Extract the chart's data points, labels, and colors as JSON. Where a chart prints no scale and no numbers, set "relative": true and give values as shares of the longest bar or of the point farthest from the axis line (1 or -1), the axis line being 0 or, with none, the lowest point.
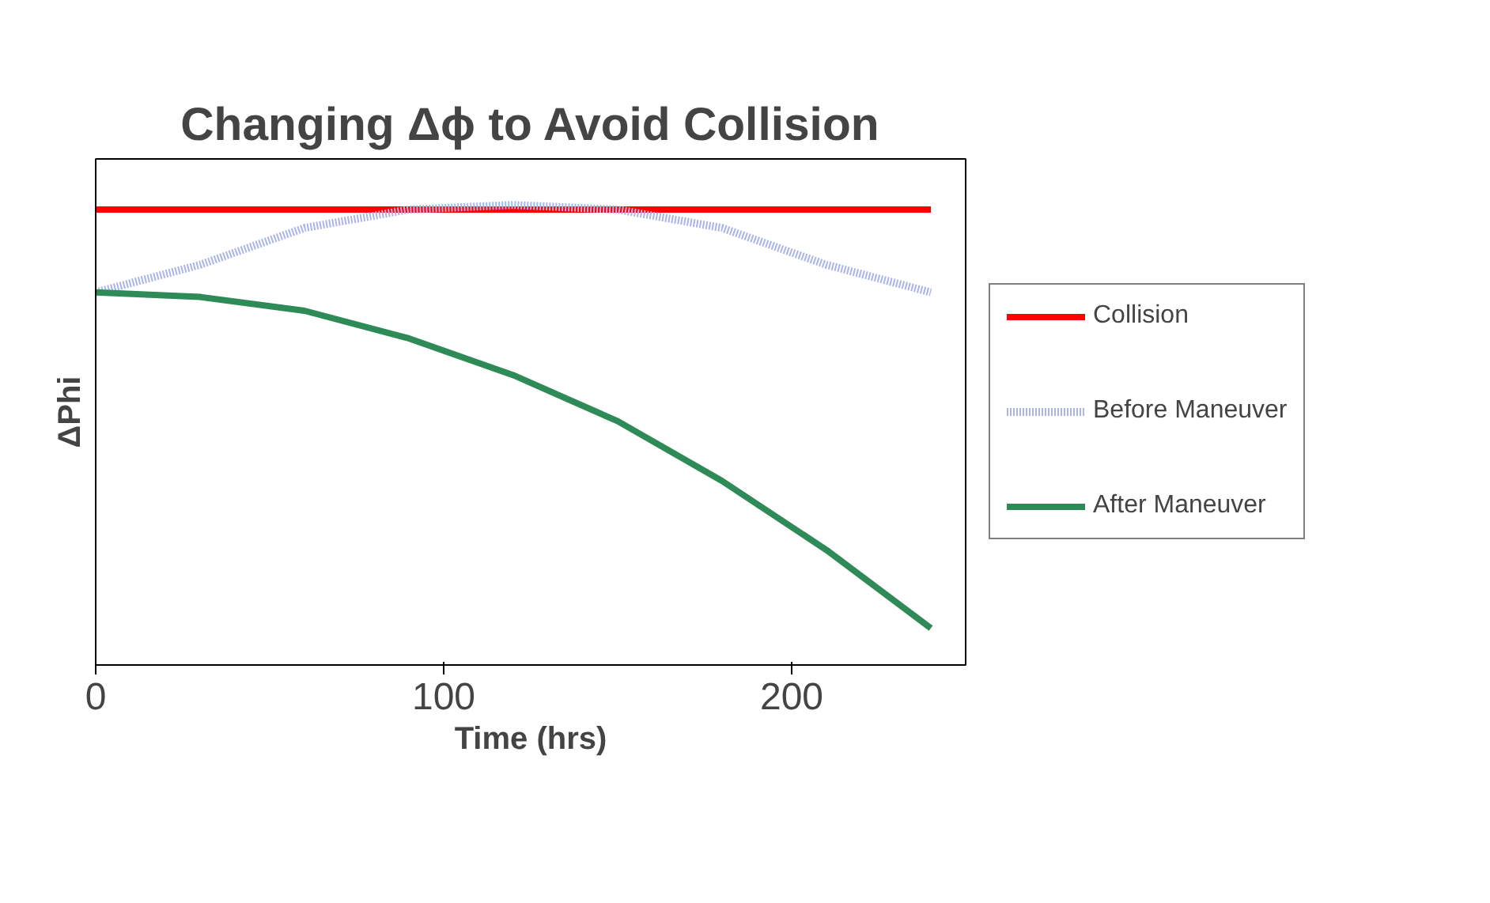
{
  "chart_data": {
    "type": "line",
    "title": "Changing Δϕ to Avoid Collision",
    "xlabel": "Time (hrs)",
    "ylabel": "ΔPhi",
    "relative": true,
    "tick_labels": "x",
    "grid": false,
    "legend": "right",
    "marker": "none",
    "xlim": [
      0,
      250
    ],
    "xticks": [
      0,
      100,
      200
    ],
    "series": [
      {
        "name": "Collision",
        "color": "#ff0000",
        "x": [
          0,
          240
        ],
        "values": [
          0.99,
          0.99
        ]
      },
      {
        "name": "Before Maneuver",
        "color": "#aab4e8",
        "line_style": "dotted",
        "x": [
          0,
          30,
          60,
          90,
          120,
          150,
          180,
          210,
          240
        ],
        "values": [
          0.81,
          0.87,
          0.95,
          0.99,
          1.0,
          0.99,
          0.95,
          0.87,
          0.81
        ]
      },
      {
        "name": "After Maneuver",
        "color": "#2e8b57",
        "x": [
          0,
          30,
          60,
          90,
          120,
          150,
          180,
          210,
          240
        ],
        "values": [
          0.81,
          0.8,
          0.77,
          0.71,
          0.63,
          0.53,
          0.4,
          0.25,
          0.08
        ]
      }
    ]
  }
}
